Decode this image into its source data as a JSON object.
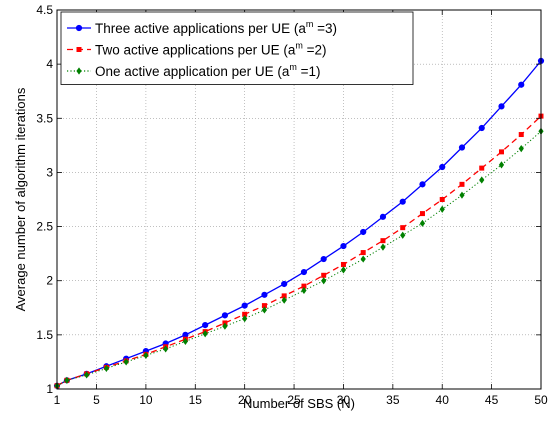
{
  "chart_data": {
    "type": "line",
    "xlabel": "Number of SBS (N)",
    "ylabel": "Average number of algorithm iterations",
    "xlim": [
      1,
      50
    ],
    "ylim": [
      1,
      4.5
    ],
    "xticks": [
      1,
      5,
      10,
      15,
      20,
      25,
      30,
      35,
      40,
      45,
      50
    ],
    "yticks": [
      1,
      1.5,
      2,
      2.5,
      3,
      3.5,
      4,
      4.5
    ],
    "grid": true,
    "legend_position": "top-left",
    "x": [
      1,
      2,
      4,
      6,
      8,
      10,
      12,
      14,
      16,
      18,
      20,
      22,
      24,
      26,
      28,
      30,
      32,
      34,
      36,
      38,
      40,
      42,
      44,
      46,
      48,
      50
    ],
    "series": [
      {
        "name": "Three active applications per UE (a",
        "sup": "m",
        "suffix": " =3)",
        "color": "#0000ff",
        "line": "solid",
        "marker": "circle",
        "values": [
          1.03,
          1.08,
          1.14,
          1.21,
          1.28,
          1.35,
          1.42,
          1.5,
          1.59,
          1.68,
          1.77,
          1.87,
          1.97,
          2.08,
          2.2,
          2.32,
          2.45,
          2.59,
          2.73,
          2.89,
          3.05,
          3.23,
          3.41,
          3.61,
          3.81,
          4.03
        ]
      },
      {
        "name": "Two active applications per UE (a",
        "sup": "m",
        "suffix": " =2)",
        "color": "#ff0000",
        "line": "dashed",
        "marker": "square",
        "values": [
          1.03,
          1.08,
          1.14,
          1.2,
          1.26,
          1.32,
          1.39,
          1.46,
          1.53,
          1.61,
          1.69,
          1.77,
          1.86,
          1.95,
          2.05,
          2.15,
          2.26,
          2.37,
          2.49,
          2.62,
          2.75,
          2.89,
          3.04,
          3.19,
          3.35,
          3.52
        ]
      },
      {
        "name": "One active application per UE (a",
        "sup": "m",
        "suffix": " =1)",
        "color": "#008000",
        "line": "dotted",
        "marker": "diamond",
        "values": [
          1.03,
          1.08,
          1.13,
          1.19,
          1.25,
          1.31,
          1.37,
          1.44,
          1.51,
          1.58,
          1.65,
          1.73,
          1.82,
          1.91,
          2.0,
          2.1,
          2.2,
          2.31,
          2.42,
          2.53,
          2.66,
          2.79,
          2.93,
          3.07,
          3.22,
          3.38
        ]
      }
    ]
  }
}
